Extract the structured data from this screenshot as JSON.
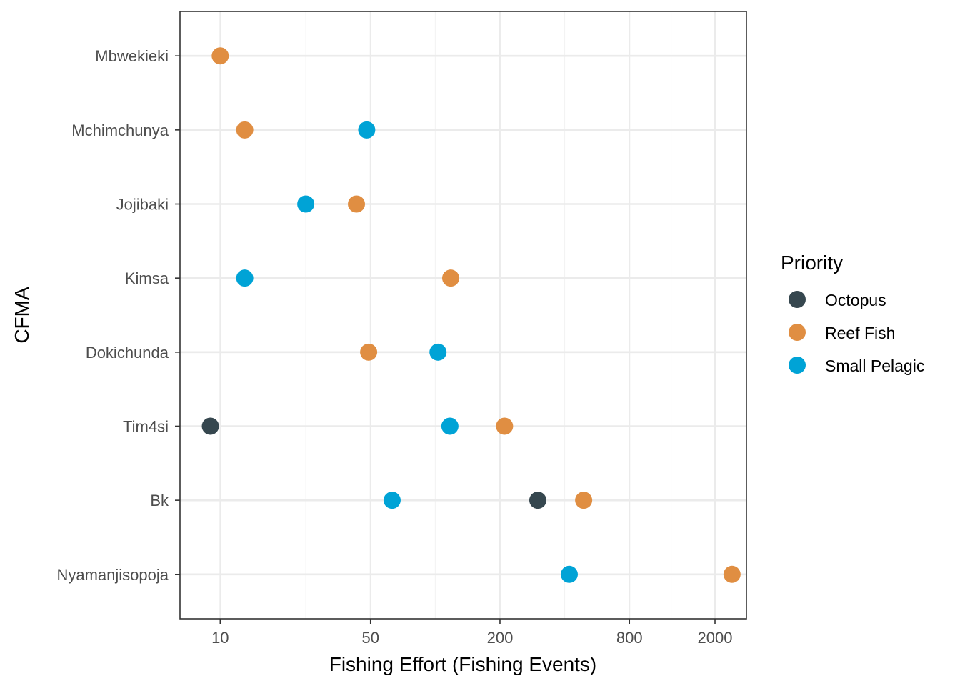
{
  "chart_data": {
    "type": "scatter",
    "title": "",
    "xlabel": "Fishing Effort (Fishing Events)",
    "ylabel": "CFMA",
    "x_scale": "log10",
    "xlim": [
      6.5,
      2800
    ],
    "x_ticks": [
      10,
      50,
      200,
      800,
      2000
    ],
    "x_tick_labels": [
      "10",
      "50",
      "200",
      "800",
      "2000"
    ],
    "x_minor_ticks": [
      5,
      25,
      100,
      400,
      1250
    ],
    "categories": [
      "Mbwekieki",
      "Mchimchunya",
      "Jojibaki",
      "Kimsa",
      "Dokichunda",
      "Tim4si",
      "Bk",
      "Nyamanjisopoja"
    ],
    "grid": true,
    "legend": {
      "title": "Priority",
      "position": "right"
    },
    "series": [
      {
        "name": "Octopus",
        "color": "#36474f",
        "points": [
          {
            "category": "Tim4si",
            "x": 9
          },
          {
            "category": "Bk",
            "x": 300
          }
        ]
      },
      {
        "name": "Reef Fish",
        "color": "#e08e42",
        "points": [
          {
            "category": "Mbwekieki",
            "x": 10
          },
          {
            "category": "Mchimchunya",
            "x": 13
          },
          {
            "category": "Jojibaki",
            "x": 43
          },
          {
            "category": "Kimsa",
            "x": 118
          },
          {
            "category": "Dokichunda",
            "x": 49
          },
          {
            "category": "Tim4si",
            "x": 210
          },
          {
            "category": "Bk",
            "x": 490
          },
          {
            "category": "Nyamanjisopoja",
            "x": 2400
          }
        ]
      },
      {
        "name": "Small Pelagic",
        "color": "#00a3d6",
        "points": [
          {
            "category": "Mchimchunya",
            "x": 48
          },
          {
            "category": "Jojibaki",
            "x": 25
          },
          {
            "category": "Kimsa",
            "x": 13
          },
          {
            "category": "Dokichunda",
            "x": 103
          },
          {
            "category": "Tim4si",
            "x": 117
          },
          {
            "category": "Bk",
            "x": 63
          },
          {
            "category": "Nyamanjisopoja",
            "x": 420
          }
        ]
      }
    ]
  }
}
